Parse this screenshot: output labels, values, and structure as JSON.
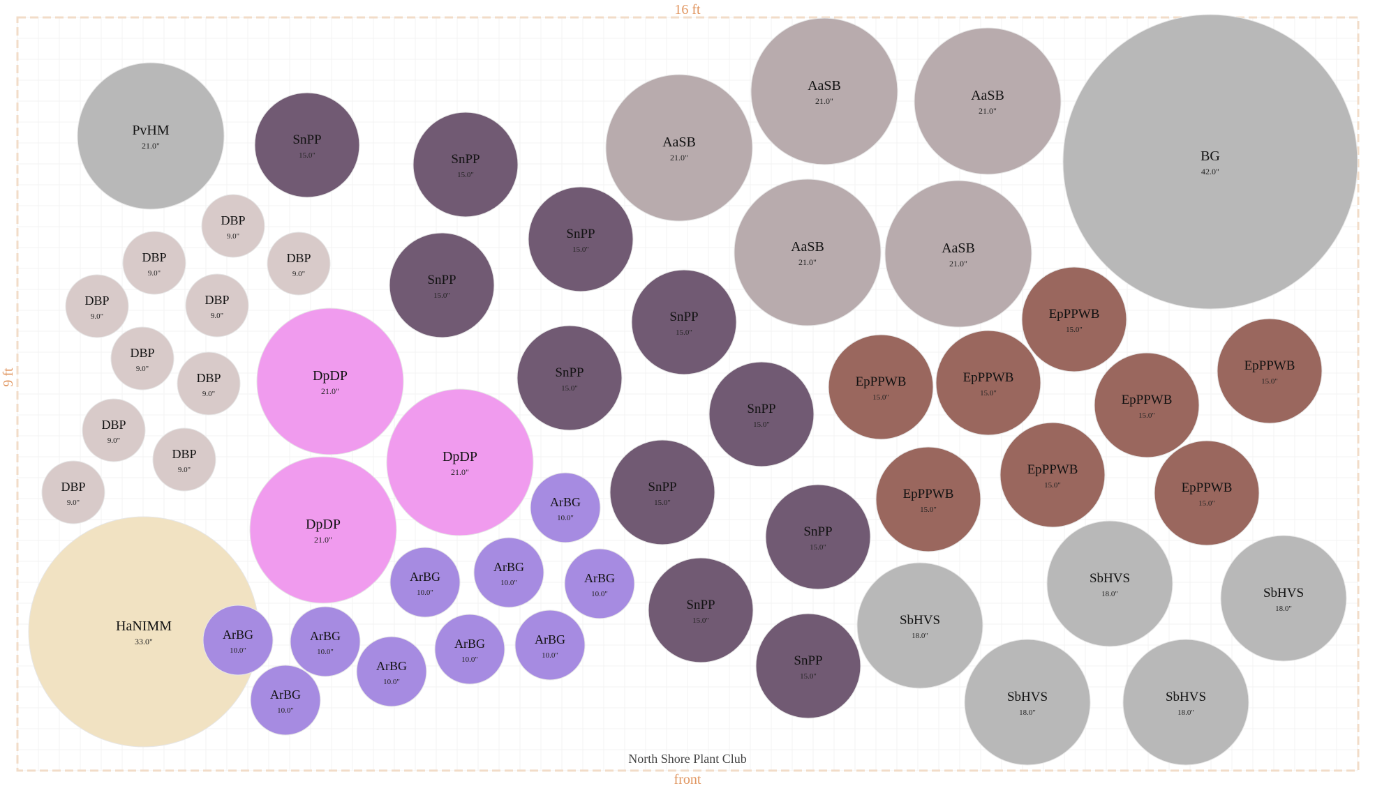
{
  "bed": {
    "width_label": "16 ft",
    "height_label": "9 ft",
    "front_label": "front",
    "club_name": "North Shore Plant Club",
    "colors": {
      "border": "#f2dcc8",
      "dimension": "#e0955f",
      "grid": "#f3f3f3"
    }
  },
  "plant_colors": {
    "BG": "#b8b8b8",
    "PvHM": "#b8b8b8",
    "SbHVS": "#b8b8b8",
    "AaSB": "#b8abad",
    "DBP": "#d8cac9",
    "SnPP": "#715a73",
    "DpDP": "#f09bee",
    "ArBG": "#a68be1",
    "EpPPWB": "#9a675e",
    "HaNIMM": "#f1e2c2"
  },
  "plants": [
    {
      "code": "PvHM",
      "size": "21.0\""
    },
    {
      "code": "SnPP",
      "size": "15.0\""
    },
    {
      "code": "SnPP",
      "size": "15.0\""
    },
    {
      "code": "AaSB",
      "size": "21.0\""
    },
    {
      "code": "AaSB",
      "size": "21.0\""
    },
    {
      "code": "AaSB",
      "size": "21.0\""
    },
    {
      "code": "BG",
      "size": "42.0\""
    },
    {
      "code": "DBP",
      "size": "9.0\""
    },
    {
      "code": "DBP",
      "size": "9.0\""
    },
    {
      "code": "DBP",
      "size": "9.0\""
    },
    {
      "code": "SnPP",
      "size": "15.0\""
    },
    {
      "code": "AaSB",
      "size": "21.0\""
    },
    {
      "code": "AaSB",
      "size": "21.0\""
    },
    {
      "code": "DBP",
      "size": "9.0\""
    },
    {
      "code": "DBP",
      "size": "9.0\""
    },
    {
      "code": "SnPP",
      "size": "15.0\""
    },
    {
      "code": "SnPP",
      "size": "15.0\""
    },
    {
      "code": "EpPPWB",
      "size": "15.0\""
    },
    {
      "code": "DBP",
      "size": "9.0\""
    },
    {
      "code": "DBP",
      "size": "9.0\""
    },
    {
      "code": "DpDP",
      "size": "21.0\""
    },
    {
      "code": "SnPP",
      "size": "15.0\""
    },
    {
      "code": "EpPPWB",
      "size": "15.0\""
    },
    {
      "code": "EpPPWB",
      "size": "15.0\""
    },
    {
      "code": "EpPPWB",
      "size": "15.0\""
    },
    {
      "code": "EpPPWB",
      "size": "15.0\""
    },
    {
      "code": "SnPP",
      "size": "15.0\""
    },
    {
      "code": "DBP",
      "size": "9.0\""
    },
    {
      "code": "DBP",
      "size": "9.0\""
    },
    {
      "code": "DpDP",
      "size": "21.0\""
    },
    {
      "code": "EpPPWB",
      "size": "15.0\""
    },
    {
      "code": "DBP",
      "size": "9.0\""
    },
    {
      "code": "SnPP",
      "size": "15.0\""
    },
    {
      "code": "EpPPWB",
      "size": "15.0\""
    },
    {
      "code": "EpPPWB",
      "size": "15.0\""
    },
    {
      "code": "ArBG",
      "size": "10.0\""
    },
    {
      "code": "DpDP",
      "size": "21.0\""
    },
    {
      "code": "SnPP",
      "size": "15.0\""
    },
    {
      "code": "ArBG",
      "size": "10.0\""
    },
    {
      "code": "ArBG",
      "size": "10.0\""
    },
    {
      "code": "ArBG",
      "size": "10.0\""
    },
    {
      "code": "SbHVS",
      "size": "18.0\""
    },
    {
      "code": "SbHVS",
      "size": "18.0\""
    },
    {
      "code": "HaNIMM",
      "size": "33.0\""
    },
    {
      "code": "SnPP",
      "size": "15.0\""
    },
    {
      "code": "SbHVS",
      "size": "18.0\""
    },
    {
      "code": "ArBG",
      "size": "10.0\""
    },
    {
      "code": "ArBG",
      "size": "10.0\""
    },
    {
      "code": "ArBG",
      "size": "10.0\""
    },
    {
      "code": "ArBG",
      "size": "10.0\""
    },
    {
      "code": "ArBG",
      "size": "10.0\""
    },
    {
      "code": "SnPP",
      "size": "15.0\""
    },
    {
      "code": "SbHVS",
      "size": "18.0\""
    },
    {
      "code": "SbHVS",
      "size": "18.0\""
    },
    {
      "code": "ArBG",
      "size": "10.0\""
    }
  ]
}
